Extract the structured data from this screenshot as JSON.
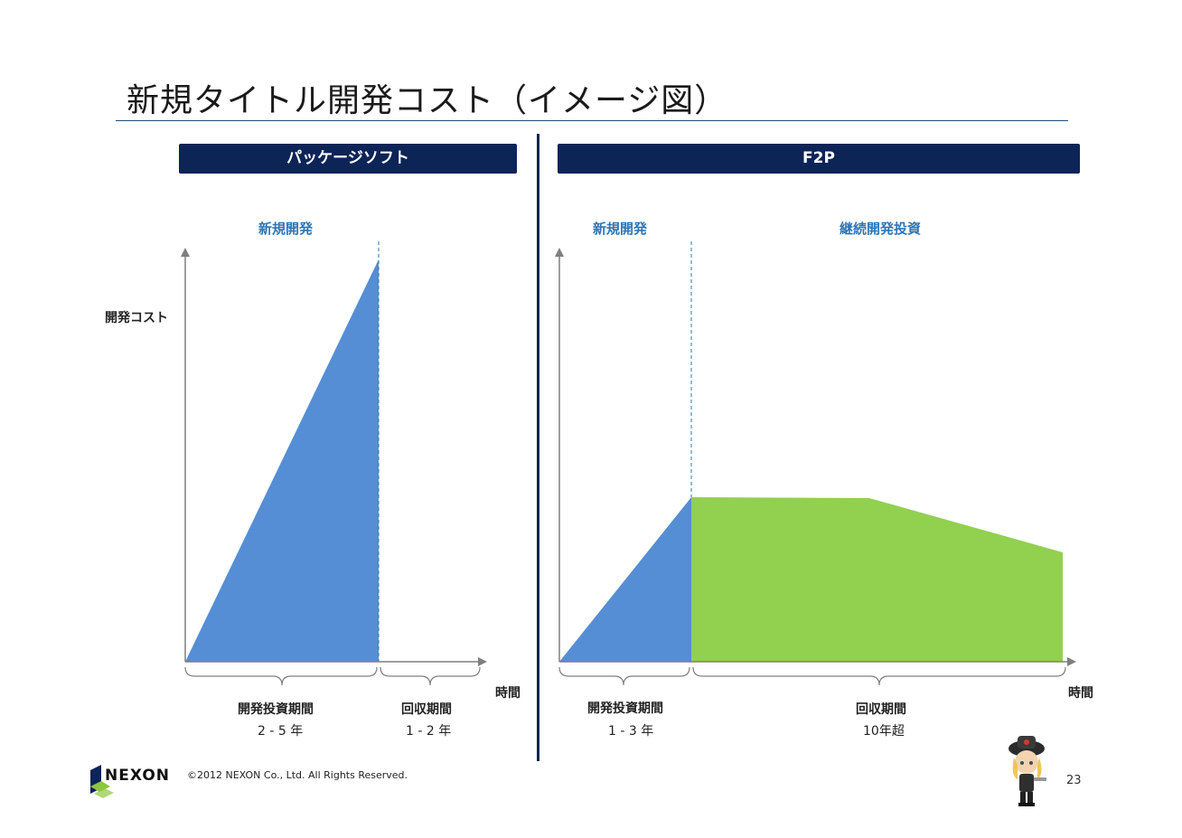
{
  "title": "新規タイトル開発コスト（イメージ図）",
  "colors": {
    "navy": "#0d2457",
    "blue_fill": "#558ed5",
    "green_fill": "#92d050",
    "label_blue": "#2e75b6",
    "axis": "#7f7f7f"
  },
  "left_panel": {
    "header": "パッケージソフト",
    "phase_label": "新規開発",
    "y_axis_label": "開発コスト",
    "x_axis_label": "時間",
    "periods": [
      {
        "name": "開発投資期間",
        "value": "2 - 5 年"
      },
      {
        "name": "回収期間",
        "value": "1 - 2 年"
      }
    ]
  },
  "right_panel": {
    "header": "F2P",
    "phase_labels": [
      "新規開発",
      "継続開発投資"
    ],
    "x_axis_label": "時間",
    "periods": [
      {
        "name": "開発投資期間",
        "value": "1 - 3 年"
      },
      {
        "name": "回収期間",
        "value": "10年超"
      }
    ]
  },
  "footer": {
    "logo_text": "NEXON",
    "copyright": "©2012 NEXON Co., Ltd. All Rights Reserved.",
    "page_number": "23"
  },
  "icons": [
    "nexon-logo-icon",
    "mascot-character-icon"
  ]
}
